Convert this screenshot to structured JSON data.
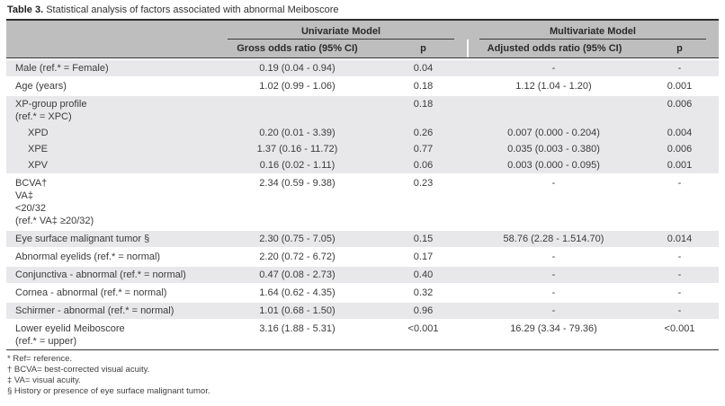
{
  "title": {
    "label": "Table 3.",
    "text": " Statistical analysis of factors associated with abnormal Meiboscore"
  },
  "header": {
    "groups": [
      {
        "label": "Univariate Model"
      },
      {
        "label": "Multivariate Model"
      }
    ],
    "columns": [
      "",
      "Gross odds ratio (95% CI)",
      "p",
      "Adjusted odds ratio (95% CI)",
      "p"
    ]
  },
  "rows": [
    {
      "lines": [
        "Male (ref.* = Female)"
      ],
      "shade": "g",
      "cells": [
        "0.19 (0.04 - 0.94)",
        "0.04",
        "-",
        "-"
      ]
    },
    {
      "lines": [
        "Age (years)"
      ],
      "shade": "w",
      "cells": [
        "1.02 (0.99 - 1.06)",
        "0.18",
        "1.12 (1.04 - 1.20)",
        "0.001"
      ]
    },
    {
      "lines": [
        "XP-group profile",
        "(ref.* = XPC)"
      ],
      "shade": "g",
      "cells": [
        "",
        "0.18",
        "",
        "0.006"
      ]
    },
    {
      "lines": [
        "XPD"
      ],
      "shade": "g",
      "nosep": true,
      "indent": true,
      "cells": [
        "0.20 (0.01 - 3.39)",
        "0.26",
        "0.007 (0.000 - 0.204)",
        "0.004"
      ]
    },
    {
      "lines": [
        "XPE"
      ],
      "shade": "g",
      "nosep": true,
      "indent": true,
      "cells": [
        "1.37 (0.16 - 11.72)",
        "0.77",
        "0.035 (0.003 - 0.380)",
        "0.006"
      ]
    },
    {
      "lines": [
        "XPV"
      ],
      "shade": "g",
      "nosep": true,
      "indent": true,
      "cells": [
        "0.16 (0.02 - 1.11)",
        "0.06",
        "0.003 (0.000 - 0.095)",
        "0.001"
      ]
    },
    {
      "lines": [
        "BCVA†",
        "VA‡",
        "<20/32",
        "(ref.* VA‡ ≥20/32)"
      ],
      "shade": "w",
      "cells": [
        "2.34 (0.59 - 9.38)",
        "0.23",
        "-",
        "-"
      ]
    },
    {
      "lines": [
        "Eye surface malignant tumor §"
      ],
      "shade": "g",
      "cells": [
        "2.30 (0.75 - 7.05)",
        "0.15",
        "58.76 (2.28 - 1.514.70)",
        "0.014"
      ]
    },
    {
      "lines": [
        "Abnormal eyelids (ref.* = normal)"
      ],
      "shade": "w",
      "cells": [
        "2.20 (0.72 - 6.72)",
        "0.17",
        "-",
        "-"
      ]
    },
    {
      "lines": [
        "Conjunctiva - abnormal (ref.* = normal)"
      ],
      "shade": "g",
      "cells": [
        "0.47 (0.08 - 2.73)",
        "0.40",
        "-",
        "-"
      ]
    },
    {
      "lines": [
        "Cornea - abnormal (ref.* = normal)"
      ],
      "shade": "w",
      "cells": [
        "1.64 (0.62 - 4.35)",
        "0.32",
        "-",
        "-"
      ]
    },
    {
      "lines": [
        "Schirmer - abnormal (ref.* = normal)"
      ],
      "shade": "g",
      "cells": [
        "1.01 (0.68 - 1.50)",
        "0.96",
        "-",
        "-"
      ]
    },
    {
      "lines": [
        "Lower eyelid Meiboscore",
        "(ref.* = upper)"
      ],
      "shade": "w",
      "cells": [
        "3.16 (1.88 - 5.31)",
        "<0.001",
        "16.29 (3.34 - 79.36)",
        "<0.001"
      ]
    }
  ],
  "footnotes": [
    "* Ref= reference.",
    "† BCVA= best-corrected visual acuity.",
    "‡ VA= visual acuity.",
    "§ History or presence of eye surface malignant tumor."
  ],
  "colors": {
    "header_band": "#bebebe",
    "row_shade": "#e8e8ea",
    "rule": "#333333",
    "text": "#3b3b3e"
  }
}
